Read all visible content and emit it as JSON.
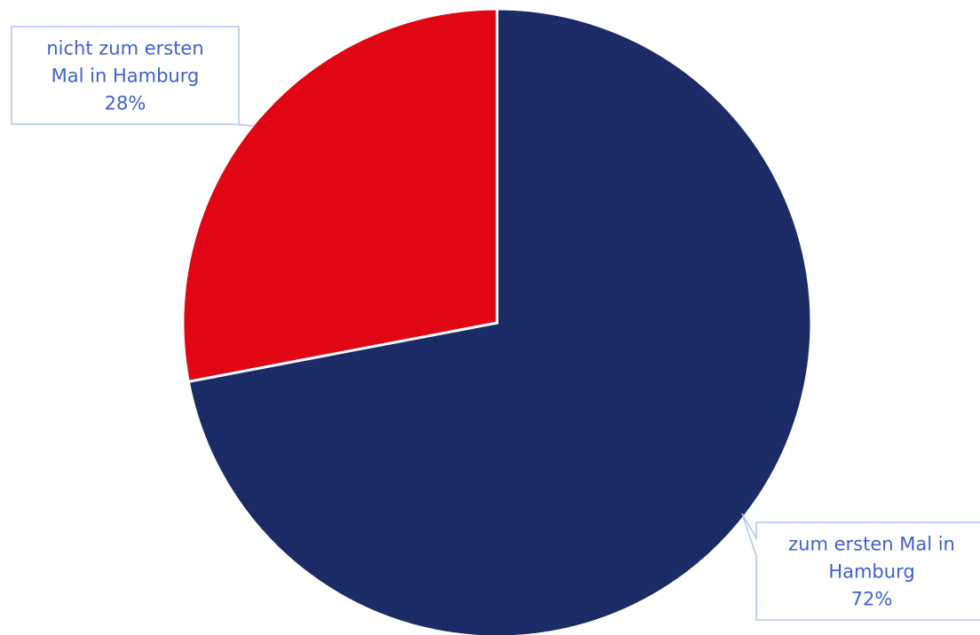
{
  "chart_data": {
    "type": "pie",
    "slices": [
      {
        "label_lines": [
          "zum ersten Mal in",
          "Hamburg"
        ],
        "value": 72,
        "value_label": "72%",
        "color": "#1a2b66"
      },
      {
        "label_lines": [
          "nicht zum ersten",
          "Mal in Hamburg"
        ],
        "value": 28,
        "value_label": "28%",
        "color": "#e00614"
      }
    ],
    "start_angle_deg": 0,
    "direction": "clockwise",
    "slice_border_color": "#ffffff",
    "callout_border_color": "#b4c3f0",
    "label_color": "#3f5fcf"
  }
}
